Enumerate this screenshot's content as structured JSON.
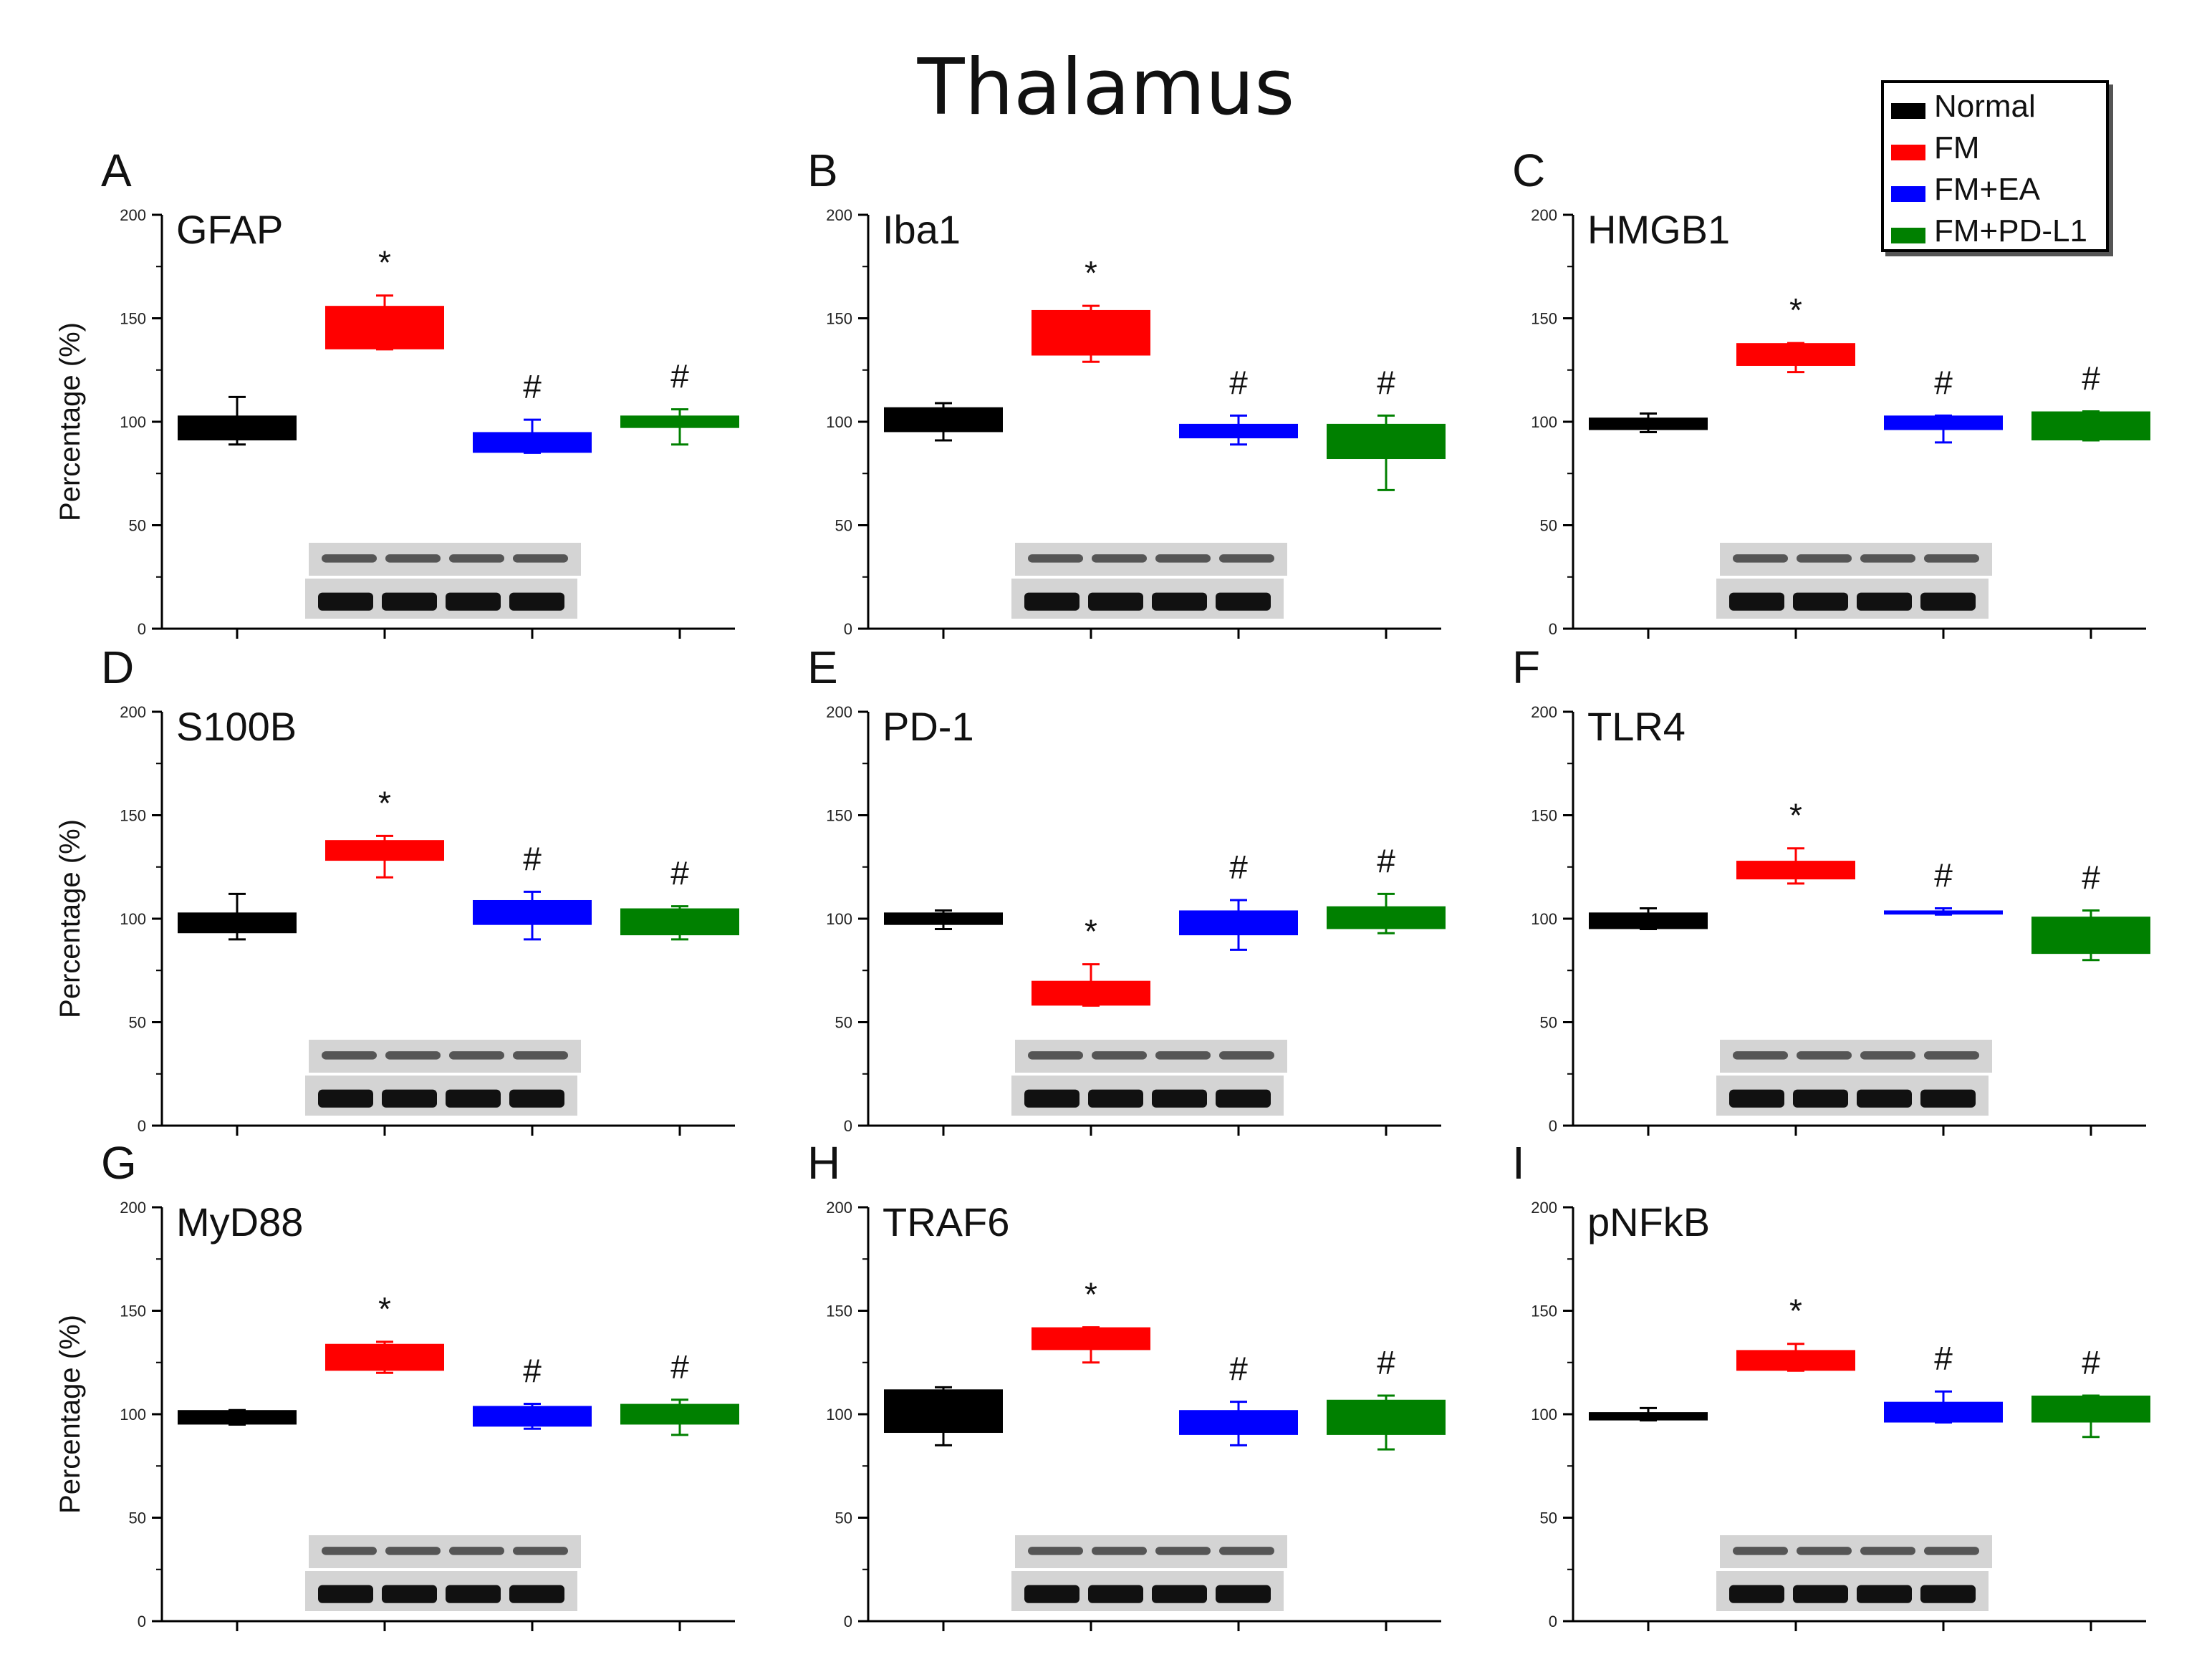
{
  "figure": {
    "title": "Thalamus",
    "legend": [
      {
        "label": "Normal",
        "color": "#000000"
      },
      {
        "label": "FM",
        "color": "#ff0000"
      },
      {
        "label": "FM+EA",
        "color": "#0000ff"
      },
      {
        "label": "FM+PD-L1",
        "color": "#008000"
      }
    ]
  },
  "chart_data": [
    {
      "letter": "A",
      "title": "GFAP",
      "type": "bar",
      "ylabel": "Percentage (%)",
      "ylim": [
        0,
        200
      ],
      "yticks": [
        0,
        50,
        100,
        150,
        200
      ],
      "series": [
        {
          "low": 91,
          "high": 103,
          "err_low": 89,
          "err_high": 112,
          "mark": ""
        },
        {
          "low": 135,
          "high": 156,
          "err_low": 135,
          "err_high": 161,
          "mark": "*"
        },
        {
          "low": 85,
          "high": 95,
          "err_low": 85,
          "err_high": 101,
          "mark": "#"
        },
        {
          "low": 97,
          "high": 103,
          "err_low": 89,
          "err_high": 106,
          "mark": "#"
        }
      ]
    },
    {
      "letter": "B",
      "title": "Iba1",
      "type": "bar",
      "ylabel": "",
      "ylim": [
        0,
        200
      ],
      "yticks": [
        0,
        50,
        100,
        150,
        200
      ],
      "series": [
        {
          "low": 95,
          "high": 107,
          "err_low": 91,
          "err_high": 109,
          "mark": ""
        },
        {
          "low": 132,
          "high": 154,
          "err_low": 129,
          "err_high": 156,
          "mark": "*"
        },
        {
          "low": 92,
          "high": 99,
          "err_low": 89,
          "err_high": 103,
          "mark": "#"
        },
        {
          "low": 82,
          "high": 99,
          "err_low": 67,
          "err_high": 103,
          "mark": "#"
        }
      ]
    },
    {
      "letter": "C",
      "title": "HMGB1",
      "type": "bar",
      "ylabel": "",
      "ylim": [
        0,
        200
      ],
      "yticks": [
        0,
        50,
        100,
        150,
        200
      ],
      "series": [
        {
          "low": 96,
          "high": 102,
          "err_low": 95,
          "err_high": 104,
          "mark": ""
        },
        {
          "low": 127,
          "high": 138,
          "err_low": 124,
          "err_high": 138,
          "mark": "*"
        },
        {
          "low": 96,
          "high": 103,
          "err_low": 90,
          "err_high": 103,
          "mark": "#"
        },
        {
          "low": 91,
          "high": 105,
          "err_low": 91,
          "err_high": 105,
          "mark": "#"
        }
      ]
    },
    {
      "letter": "D",
      "title": "S100B",
      "type": "bar",
      "ylabel": "Percentage (%)",
      "ylim": [
        0,
        200
      ],
      "yticks": [
        0,
        50,
        100,
        150,
        200
      ],
      "series": [
        {
          "low": 93,
          "high": 103,
          "err_low": 90,
          "err_high": 112,
          "mark": ""
        },
        {
          "low": 128,
          "high": 138,
          "err_low": 120,
          "err_high": 140,
          "mark": "*"
        },
        {
          "low": 97,
          "high": 109,
          "err_low": 90,
          "err_high": 113,
          "mark": "#"
        },
        {
          "low": 92,
          "high": 105,
          "err_low": 90,
          "err_high": 106,
          "mark": "#"
        }
      ]
    },
    {
      "letter": "E",
      "title": "PD-1",
      "type": "bar",
      "ylabel": "",
      "ylim": [
        0,
        200
      ],
      "yticks": [
        0,
        50,
        100,
        150,
        200
      ],
      "series": [
        {
          "low": 97,
          "high": 103,
          "err_low": 95,
          "err_high": 104,
          "mark": ""
        },
        {
          "low": 58,
          "high": 70,
          "err_low": 58,
          "err_high": 78,
          "mark": "*"
        },
        {
          "low": 92,
          "high": 104,
          "err_low": 85,
          "err_high": 109,
          "mark": "#"
        },
        {
          "low": 95,
          "high": 106,
          "err_low": 93,
          "err_high": 112,
          "mark": "#"
        }
      ]
    },
    {
      "letter": "F",
      "title": "TLR4",
      "type": "bar",
      "ylabel": "",
      "ylim": [
        0,
        200
      ],
      "yticks": [
        0,
        50,
        100,
        150,
        200
      ],
      "series": [
        {
          "low": 95,
          "high": 103,
          "err_low": 95,
          "err_high": 105,
          "mark": ""
        },
        {
          "low": 119,
          "high": 128,
          "err_low": 117,
          "err_high": 134,
          "mark": "*"
        },
        {
          "low": 102,
          "high": 104,
          "err_low": 102,
          "err_high": 105,
          "mark": "#"
        },
        {
          "low": 83,
          "high": 101,
          "err_low": 80,
          "err_high": 104,
          "mark": "#"
        }
      ]
    },
    {
      "letter": "G",
      "title": "MyD88",
      "type": "bar",
      "ylabel": "Percentage (%)",
      "ylim": [
        0,
        200
      ],
      "yticks": [
        0,
        50,
        100,
        150,
        200
      ],
      "series": [
        {
          "low": 95,
          "high": 102,
          "err_low": 95,
          "err_high": 102,
          "mark": ""
        },
        {
          "low": 121,
          "high": 134,
          "err_low": 120,
          "err_high": 135,
          "mark": "*"
        },
        {
          "low": 94,
          "high": 104,
          "err_low": 93,
          "err_high": 105,
          "mark": "#"
        },
        {
          "low": 95,
          "high": 105,
          "err_low": 90,
          "err_high": 107,
          "mark": "#"
        }
      ]
    },
    {
      "letter": "H",
      "title": "TRAF6",
      "type": "bar",
      "ylabel": "",
      "ylim": [
        0,
        200
      ],
      "yticks": [
        0,
        50,
        100,
        150,
        200
      ],
      "series": [
        {
          "low": 91,
          "high": 112,
          "err_low": 85,
          "err_high": 113,
          "mark": ""
        },
        {
          "low": 131,
          "high": 142,
          "err_low": 125,
          "err_high": 142,
          "mark": "*"
        },
        {
          "low": 90,
          "high": 102,
          "err_low": 85,
          "err_high": 106,
          "mark": "#"
        },
        {
          "low": 90,
          "high": 107,
          "err_low": 83,
          "err_high": 109,
          "mark": "#"
        }
      ]
    },
    {
      "letter": "I",
      "title": "pNFkB",
      "type": "bar",
      "ylabel": "",
      "ylim": [
        0,
        200
      ],
      "yticks": [
        0,
        50,
        100,
        150,
        200
      ],
      "series": [
        {
          "low": 97,
          "high": 101,
          "err_low": 97,
          "err_high": 103,
          "mark": ""
        },
        {
          "low": 121,
          "high": 131,
          "err_low": 121,
          "err_high": 134,
          "mark": "*"
        },
        {
          "low": 96,
          "high": 106,
          "err_low": 96,
          "err_high": 111,
          "mark": "#"
        },
        {
          "low": 96,
          "high": 109,
          "err_low": 89,
          "err_high": 109,
          "mark": "#"
        }
      ]
    }
  ]
}
